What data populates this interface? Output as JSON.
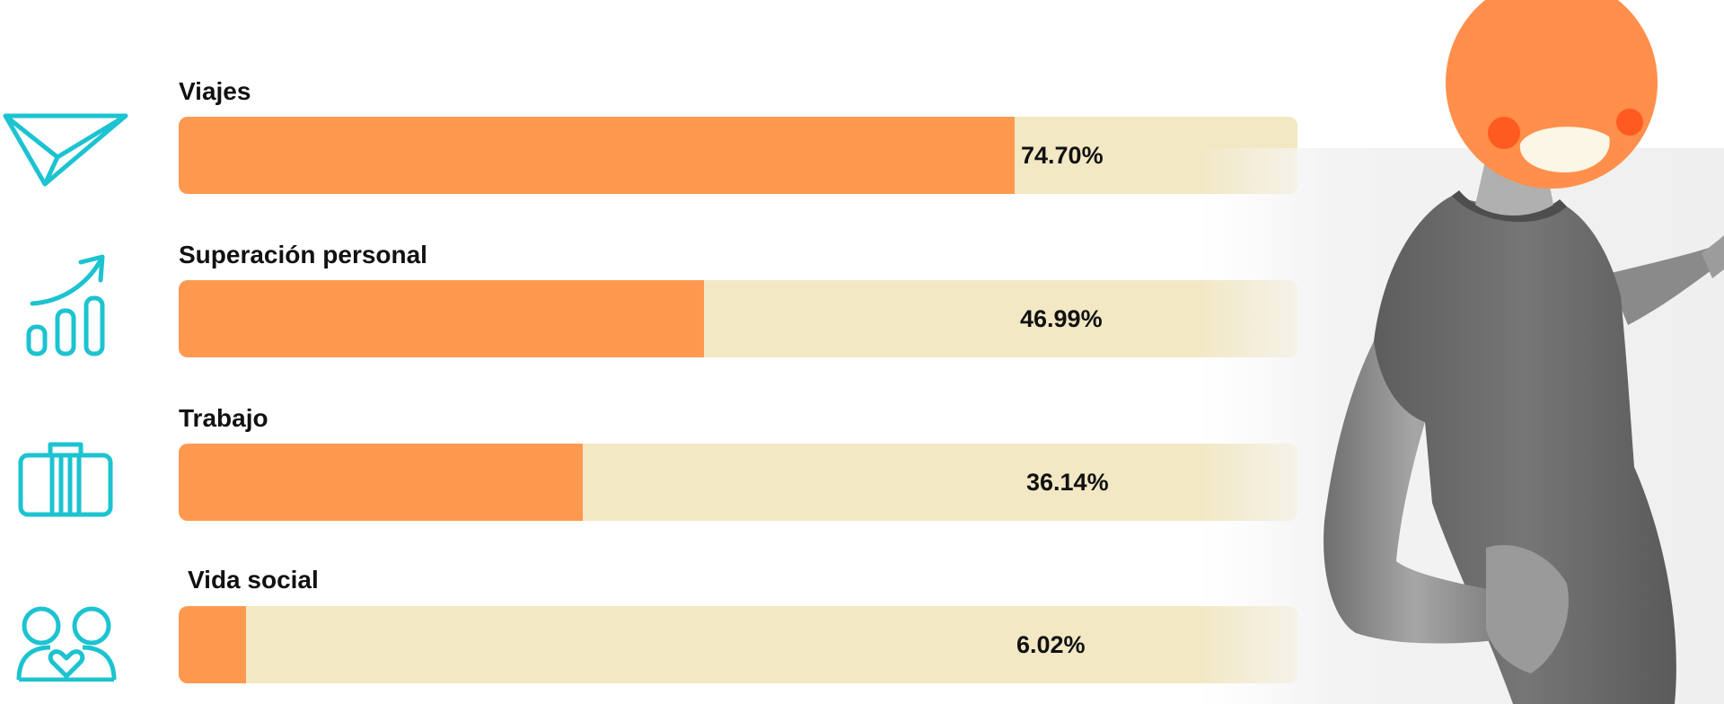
{
  "colors": {
    "fill": "#FF9950",
    "track": "#F2E8C4",
    "icon": "#1CC3D0",
    "text": "#111111",
    "mascot_face": "#FF8F4A",
    "mascot_cheeks": "#FF5A1F",
    "mascot_smile": "#FBF6E6"
  },
  "icons": [
    "paper-plane-icon",
    "growth-chart-icon",
    "briefcase-icon",
    "couple-heart-icon"
  ],
  "chart_data": {
    "type": "bar",
    "orientation": "horizontal",
    "categories": [
      "Viajes",
      "Superación personal",
      "Trabajo",
      "Vida social"
    ],
    "values": [
      74.7,
      46.99,
      36.14,
      6.02
    ],
    "value_labels": [
      "74.70%",
      "46.99%",
      "36.14%",
      "6.02%"
    ],
    "unit": "%",
    "xlim": [
      0,
      100
    ],
    "grid": false,
    "legend": false
  }
}
